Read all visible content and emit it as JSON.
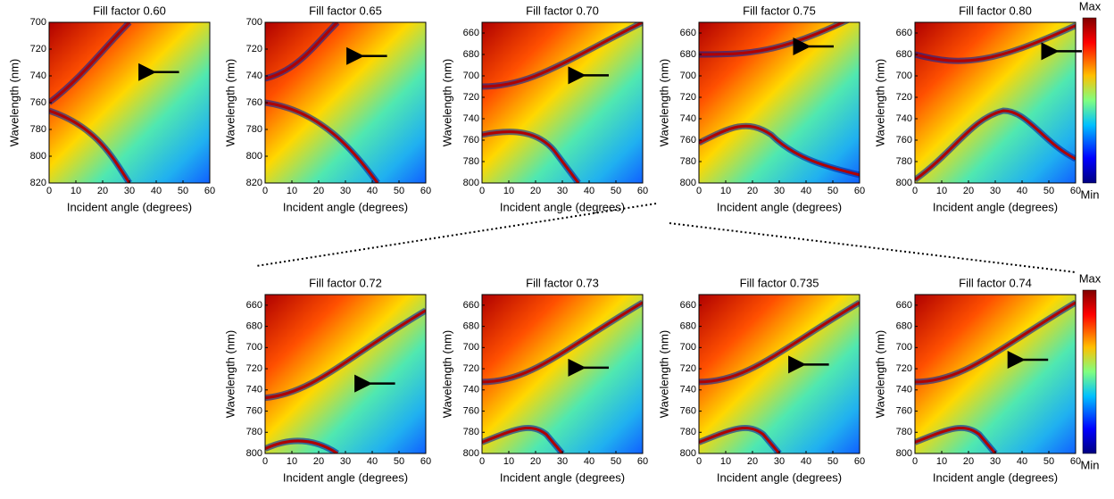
{
  "chart_data": [
    {
      "type": "heatmap",
      "title": "Fill factor 0.60",
      "xlabel": "Incident angle (degrees)",
      "ylabel": "Wavelength (nm)",
      "xlim": [
        0,
        60
      ],
      "xticks": [
        0,
        10,
        20,
        30,
        40,
        50,
        60
      ],
      "ylim": [
        820,
        700
      ],
      "yticks": [
        700,
        720,
        740,
        760,
        780,
        800,
        820
      ]
    },
    {
      "type": "heatmap",
      "title": "Fill factor 0.65",
      "xlabel": "Incident angle (degrees)",
      "ylabel": "Wavelength (nm)",
      "xlim": [
        0,
        60
      ],
      "xticks": [
        0,
        10,
        20,
        30,
        40,
        50,
        60
      ],
      "ylim": [
        820,
        700
      ],
      "yticks": [
        700,
        720,
        740,
        760,
        780,
        800,
        820
      ]
    },
    {
      "type": "heatmap",
      "title": "Fill factor 0.70",
      "xlabel": "Incident angle (degrees)",
      "ylabel": "Wavelength (nm)",
      "xlim": [
        0,
        60
      ],
      "xticks": [
        0,
        10,
        20,
        30,
        40,
        50,
        60
      ],
      "ylim": [
        800,
        650
      ],
      "yticks": [
        660,
        680,
        700,
        720,
        740,
        760,
        780,
        800
      ]
    },
    {
      "type": "heatmap",
      "title": "Fill factor 0.75",
      "xlabel": "Incident angle (degrees)",
      "ylabel": "Wavelength (nm)",
      "xlim": [
        0,
        60
      ],
      "xticks": [
        0,
        10,
        20,
        30,
        40,
        50,
        60
      ],
      "ylim": [
        800,
        650
      ],
      "yticks": [
        660,
        680,
        700,
        720,
        740,
        760,
        780,
        800
      ]
    },
    {
      "type": "heatmap",
      "title": "Fill factor 0.80",
      "xlabel": "Incident angle (degrees)",
      "ylabel": "Wavelength (nm)",
      "xlim": [
        0,
        60
      ],
      "xticks": [
        0,
        10,
        20,
        30,
        40,
        50,
        60
      ],
      "ylim": [
        800,
        650
      ],
      "yticks": [
        660,
        680,
        700,
        720,
        740,
        760,
        780,
        800
      ],
      "colorbar": {
        "top": "Max",
        "bottom": "Min"
      }
    },
    {
      "type": "heatmap",
      "title": "Fill factor 0.72",
      "xlabel": "Incident angle (degrees)",
      "ylabel": "Wavelength (nm)",
      "xlim": [
        0,
        60
      ],
      "xticks": [
        0,
        10,
        20,
        30,
        40,
        50,
        60
      ],
      "ylim": [
        800,
        650
      ],
      "yticks": [
        660,
        680,
        700,
        720,
        740,
        760,
        780,
        800
      ]
    },
    {
      "type": "heatmap",
      "title": "Fill factor 0.73",
      "xlabel": "Incident angle (degrees)",
      "ylabel": "Wavelength (nm)",
      "xlim": [
        0,
        60
      ],
      "xticks": [
        0,
        10,
        20,
        30,
        40,
        50,
        60
      ],
      "ylim": [
        800,
        650
      ],
      "yticks": [
        660,
        680,
        700,
        720,
        740,
        760,
        780,
        800
      ]
    },
    {
      "type": "heatmap",
      "title": "Fill factor 0.735",
      "xlabel": "Incident angle (degrees)",
      "ylabel": "Wavelength (nm)",
      "xlim": [
        0,
        60
      ],
      "xticks": [
        0,
        10,
        20,
        30,
        40,
        50,
        60
      ],
      "ylim": [
        800,
        650
      ],
      "yticks": [
        660,
        680,
        700,
        720,
        740,
        760,
        780,
        800
      ]
    },
    {
      "type": "heatmap",
      "title": "Fill factor 0.74",
      "xlabel": "Incident angle (degrees)",
      "ylabel": "Wavelength (nm)",
      "xlim": [
        0,
        60
      ],
      "xticks": [
        0,
        10,
        20,
        30,
        40,
        50,
        60
      ],
      "ylim": [
        800,
        650
      ],
      "yticks": [
        660,
        680,
        700,
        720,
        740,
        760,
        780,
        800
      ],
      "colorbar": {
        "top": "Max",
        "bottom": "Min"
      }
    }
  ]
}
